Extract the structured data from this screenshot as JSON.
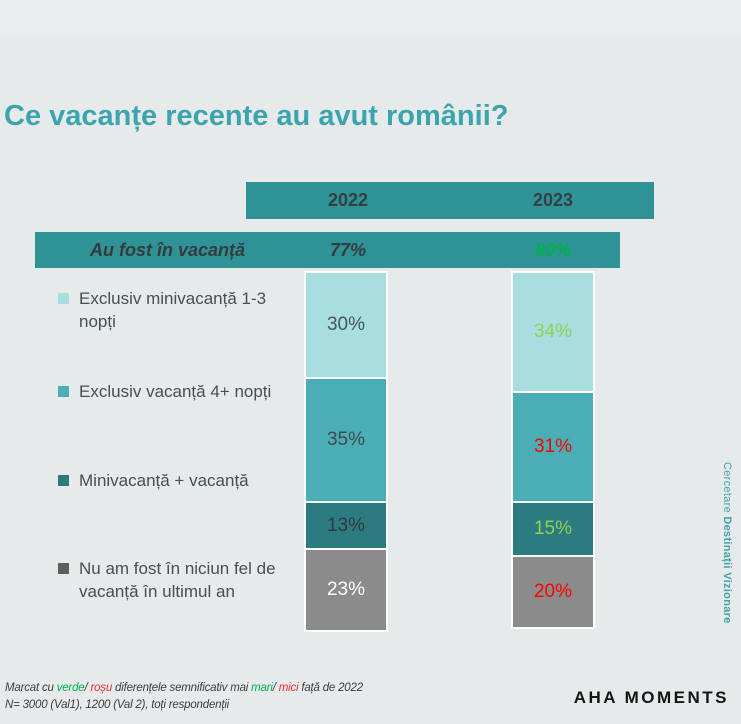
{
  "title": "Ce vacanțe recente au avut românii?",
  "header": {
    "col_2022": "2022",
    "col_2023": "2023"
  },
  "summary_row": {
    "label": "Au fost în vacanță",
    "value_2022": "77%",
    "value_2022_color": "#343c3f",
    "value_2023": "80%",
    "value_2023_color": "#00b050"
  },
  "chart_data": {
    "type": "bar",
    "stacked": true,
    "categories": [
      "2022",
      "2023"
    ],
    "series": [
      {
        "name": "Exclusiv minivacanță 1-3 nopți",
        "color": "#a8dedf",
        "swatch_color": "#a8dedf",
        "values": [
          30,
          34
        ],
        "labels": [
          "30%",
          "34%"
        ],
        "label_colors": [
          "#49565b",
          "#92d050"
        ]
      },
      {
        "name": "Exclusiv vacanță 4+ nopți",
        "color": "#4baeb7",
        "swatch_color": "#4baeb7",
        "values": [
          35,
          31
        ],
        "labels": [
          "35%",
          "31%"
        ],
        "label_colors": [
          "#3e4a4e",
          "#ff0000"
        ]
      },
      {
        "name": "Minivacanță + vacanță",
        "color": "#2b7b81",
        "swatch_color": "#2b7b81",
        "values": [
          13,
          15
        ],
        "labels": [
          "13%",
          "15%"
        ],
        "label_colors": [
          "#2f3a3c",
          "#92d050"
        ]
      },
      {
        "name": "Nu am fost în niciun fel de vacanță în ultimul an",
        "color": "#8b8b8b",
        "swatch_color": "#5e5e5e",
        "values": [
          23,
          20
        ],
        "labels": [
          "23%",
          "20%"
        ],
        "label_colors": [
          "#ffffff",
          "#ff0000"
        ]
      }
    ],
    "title": "Ce vacanțe recente au avut românii?",
    "legend_position": "left",
    "grid": false
  },
  "side_note": {
    "normal": "Cercetare ",
    "bold": "Destinații Vizionare"
  },
  "footnote_line1_segments": [
    {
      "text": "Marcat cu ",
      "color": "#3d3d3d"
    },
    {
      "text": "verde",
      "color": "#00b050"
    },
    {
      "text": "/ ",
      "color": "#3d3d3d"
    },
    {
      "text": "roșu",
      "color": "#e03030"
    },
    {
      "text": " diferențele semnificativ mai ",
      "color": "#3d3d3d"
    },
    {
      "text": "mari",
      "color": "#00b050"
    },
    {
      "text": "/ ",
      "color": "#3d3d3d"
    },
    {
      "text": "mici",
      "color": "#e03030"
    },
    {
      "text": " față de 2022",
      "color": "#3d3d3d"
    }
  ],
  "footnote_line2": "N= 3000 (Val1), 1200 (Val 2), toți respondenții",
  "logo_text": "AHA MOMENTS"
}
